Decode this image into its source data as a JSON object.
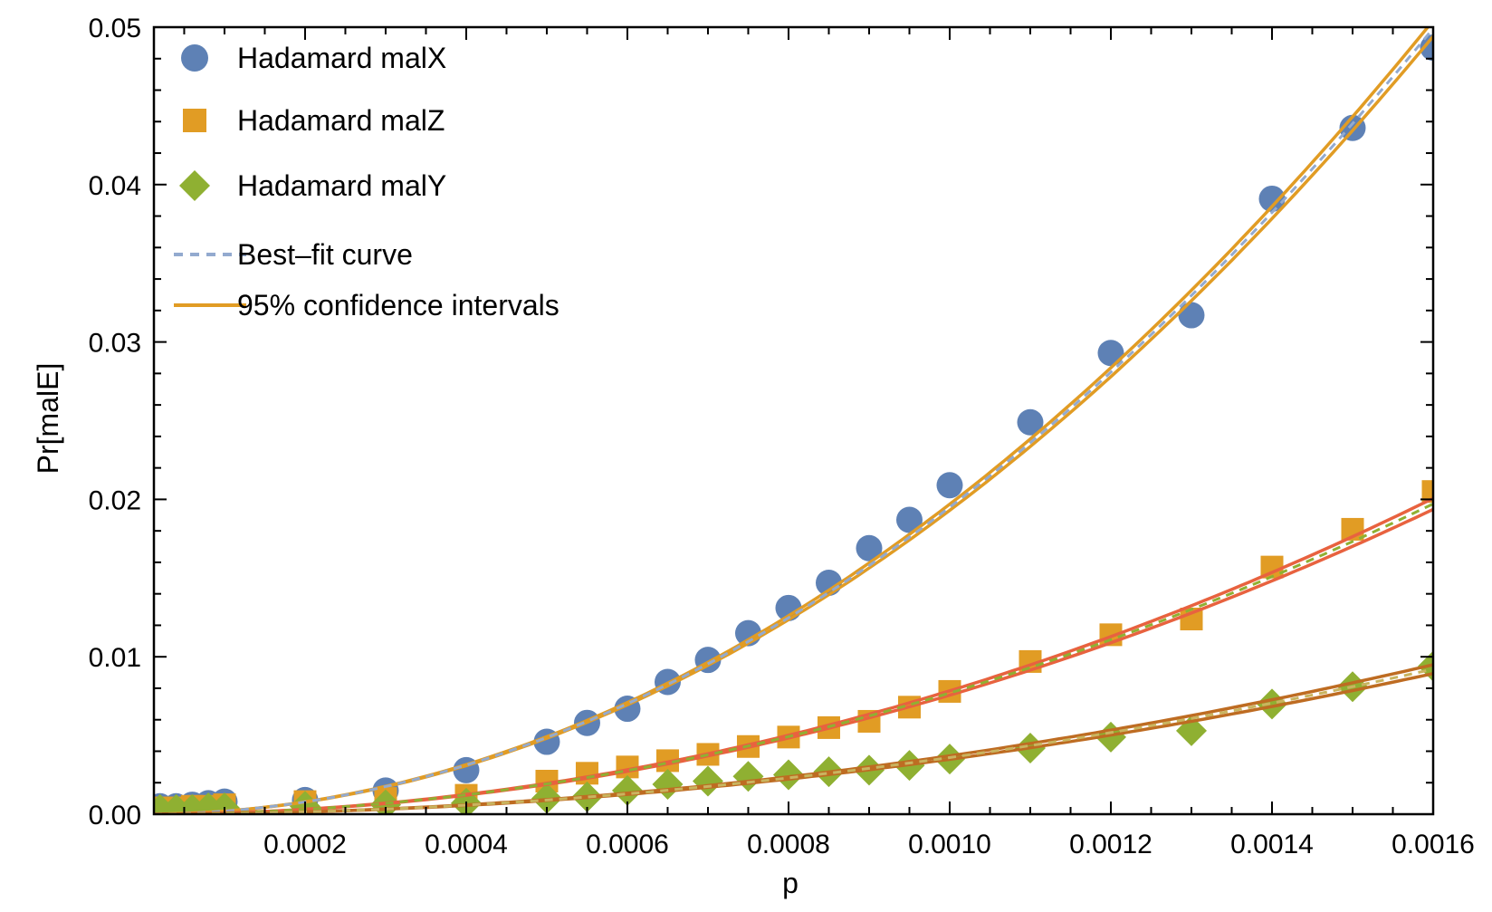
{
  "chart_data": {
    "type": "scatter",
    "title": "",
    "xlabel": "p",
    "ylabel": "Pr[malE]",
    "xlim": [
      1.24e-05,
      0.0016
    ],
    "ylim": [
      0,
      0.05
    ],
    "grid": false,
    "legend_position": "top-left-inside",
    "x_axis": {
      "major_ticks": [
        0.0002,
        0.0004,
        0.0006,
        0.0008,
        0.001,
        0.0012,
        0.0014,
        0.0016
      ],
      "major_labels": [
        "0.0002",
        "0.0004",
        "0.0006",
        "0.0008",
        "0.0010",
        "0.0012",
        "0.0014",
        "0.0016"
      ],
      "minor_step": 5e-05
    },
    "y_axis": {
      "major_ticks": [
        0,
        0.01,
        0.02,
        0.03,
        0.04,
        0.05
      ],
      "major_labels": [
        "0.00",
        "0.01",
        "0.02",
        "0.03",
        "0.04",
        "0.05"
      ],
      "minor_step": 0.002
    },
    "series": [
      {
        "name": "Hadamard malX",
        "marker": "circle",
        "color": "#5E81B5",
        "points": [
          [
            2e-05,
            0.0005
          ],
          [
            4e-05,
            0.0005
          ],
          [
            6e-05,
            0.0006
          ],
          [
            8e-05,
            0.0007
          ],
          [
            0.0001,
            0.0008
          ],
          [
            0.0002,
            0.0009
          ],
          [
            0.0003,
            0.0015
          ],
          [
            0.0004,
            0.0028
          ],
          [
            0.0005,
            0.0046
          ],
          [
            0.00055,
            0.0058
          ],
          [
            0.0006,
            0.0067
          ],
          [
            0.00065,
            0.0084
          ],
          [
            0.0007,
            0.0098
          ],
          [
            0.00075,
            0.0115
          ],
          [
            0.0008,
            0.0131
          ],
          [
            0.00085,
            0.0147
          ],
          [
            0.0009,
            0.0169
          ],
          [
            0.00095,
            0.0187
          ],
          [
            0.001,
            0.0209
          ],
          [
            0.0011,
            0.0249
          ],
          [
            0.0012,
            0.0293
          ],
          [
            0.0013,
            0.0317
          ],
          [
            0.0014,
            0.0391
          ],
          [
            0.0015,
            0.0436
          ],
          [
            0.0016,
            0.0487
          ]
        ],
        "fit": {
          "model": "quadratic",
          "coefficient": 19500,
          "ci_half_width_at_max": 0.0005,
          "ci_color": "#E19C24",
          "center_dash_color": "#93AACF"
        }
      },
      {
        "name": "Hadamard malZ",
        "marker": "square",
        "color": "#E19C24",
        "points": [
          [
            2e-05,
            0.0004
          ],
          [
            4e-05,
            0.0004
          ],
          [
            6e-05,
            0.0005
          ],
          [
            8e-05,
            0.0005
          ],
          [
            0.0001,
            0.0006
          ],
          [
            0.0002,
            0.0008
          ],
          [
            0.0003,
            0.001
          ],
          [
            0.0004,
            0.0012
          ],
          [
            0.0005,
            0.0021
          ],
          [
            0.00055,
            0.0026
          ],
          [
            0.0006,
            0.003
          ],
          [
            0.00065,
            0.0034
          ],
          [
            0.0007,
            0.0038
          ],
          [
            0.00075,
            0.0043
          ],
          [
            0.0008,
            0.0049
          ],
          [
            0.00085,
            0.0055
          ],
          [
            0.0009,
            0.0059
          ],
          [
            0.00095,
            0.0068
          ],
          [
            0.001,
            0.0078
          ],
          [
            0.0011,
            0.0097
          ],
          [
            0.0012,
            0.0114
          ],
          [
            0.0013,
            0.0124
          ],
          [
            0.0014,
            0.0157
          ],
          [
            0.0015,
            0.0181
          ],
          [
            0.0016,
            0.0205
          ]
        ],
        "fit": {
          "model": "quadratic",
          "coefficient": 7700,
          "ci_half_width_at_max": 0.00035,
          "ci_color": "#E8623F",
          "center_dash_color": "#8FB032"
        }
      },
      {
        "name": "Hadamard malY",
        "marker": "diamond",
        "color": "#8FB032",
        "points": [
          [
            2e-05,
            0.0003
          ],
          [
            4e-05,
            0.0003
          ],
          [
            6e-05,
            0.0003
          ],
          [
            8e-05,
            0.0004
          ],
          [
            0.0001,
            0.0004
          ],
          [
            0.0002,
            0.0005
          ],
          [
            0.0003,
            0.0006
          ],
          [
            0.0004,
            0.0007
          ],
          [
            0.0005,
            0.001
          ],
          [
            0.00055,
            0.0011
          ],
          [
            0.0006,
            0.0015
          ],
          [
            0.00065,
            0.0019
          ],
          [
            0.0007,
            0.0021
          ],
          [
            0.00075,
            0.0024
          ],
          [
            0.0008,
            0.0025
          ],
          [
            0.00085,
            0.0027
          ],
          [
            0.0009,
            0.0028
          ],
          [
            0.00095,
            0.0031
          ],
          [
            0.001,
            0.0035
          ],
          [
            0.0011,
            0.0042
          ],
          [
            0.0012,
            0.0049
          ],
          [
            0.0013,
            0.0053
          ],
          [
            0.0014,
            0.007
          ],
          [
            0.0015,
            0.0081
          ],
          [
            0.0016,
            0.0094
          ]
        ],
        "fit": {
          "model": "quadratic",
          "coefficient": 3600,
          "ci_half_width_at_max": 0.00028,
          "ci_color": "#BE6C22",
          "center_dash_color": "#C9B45F"
        }
      }
    ],
    "legend": [
      {
        "label": "Hadamard malX",
        "swatch": "circle",
        "color": "#5E81B5"
      },
      {
        "label": "Hadamard malZ",
        "swatch": "square",
        "color": "#E19C24"
      },
      {
        "label": "Hadamard malY",
        "swatch": "diamond",
        "color": "#8FB032"
      },
      {
        "label": "Best–fit curve",
        "swatch": "dashed-line",
        "color": "#93AACF"
      },
      {
        "label": "95% confidence intervals",
        "swatch": "line",
        "color": "#E19C24"
      }
    ]
  }
}
